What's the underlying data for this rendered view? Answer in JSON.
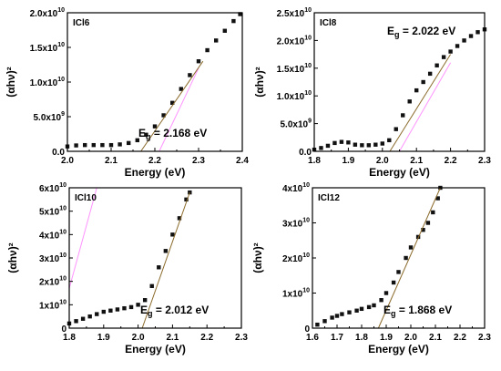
{
  "colors": {
    "data": "#111111",
    "fit": "#cc4444",
    "guide": "#ff66ff",
    "tangent": "#8a6a2a"
  },
  "chart_data": [
    {
      "type": "scatter",
      "label": "ICl6",
      "xlabel": "Energy (eV)",
      "ylabel": "(αhν)²",
      "xlim": [
        2.0,
        2.4
      ],
      "ylim": [
        0,
        20000000000.0
      ],
      "x_ticks": [
        2.0,
        2.1,
        2.2,
        2.3,
        2.4
      ],
      "x_tick_labels": [
        "2.0",
        "2.1",
        "2.2",
        "2.3",
        "2.4"
      ],
      "y_ticks": [
        0,
        5000000000.0,
        10000000000.0,
        15000000000.0,
        20000000000.0
      ],
      "y_tick_labels": [
        {
          "m": "0.0",
          "e": ""
        },
        {
          "m": "5.0x10",
          "e": "9"
        },
        {
          "m": "1.0x10",
          "e": "10"
        },
        {
          "m": "1.5x10",
          "e": "10"
        },
        {
          "m": "2.0x10",
          "e": "10"
        }
      ],
      "gap_text": {
        "base": "E",
        "sub": "g",
        "rest": " = 2.168 eV"
      },
      "gap_text_position": "lower-right",
      "band_gap": 2.168,
      "x": [
        2.0,
        2.02,
        2.04,
        2.06,
        2.08,
        2.1,
        2.12,
        2.14,
        2.16,
        2.18,
        2.2,
        2.22,
        2.24,
        2.26,
        2.28,
        2.3,
        2.32,
        2.34,
        2.36,
        2.38,
        2.395
      ],
      "y": [
        700000000.0,
        850000000.0,
        900000000.0,
        900000000.0,
        900000000.0,
        900000000.0,
        1000000000.0,
        1200000000.0,
        1600000000.0,
        2400000000.0,
        3600000000.0,
        5200000000.0,
        7000000000.0,
        9000000000.0,
        11000000000.0,
        13000000000.0,
        14600000000.0,
        16000000000.0,
        17400000000.0,
        18800000000.0,
        19800000000.0
      ],
      "fit_line": {
        "x": [
          2.168,
          2.31
        ],
        "y": [
          0,
          13000000000.0
        ]
      },
      "guide_line": {
        "x": [
          2.21,
          2.3
        ],
        "y": [
          0,
          12000000000.0
        ]
      }
    },
    {
      "type": "scatter",
      "label": "ICl8",
      "xlabel": "Energy (eV)",
      "ylabel": "(αhν)²",
      "xlim": [
        1.8,
        2.3
      ],
      "ylim": [
        0,
        25000000000.0
      ],
      "x_ticks": [
        1.8,
        1.9,
        2.0,
        2.1,
        2.2,
        2.3
      ],
      "x_tick_labels": [
        "1.8",
        "1.9",
        "2.0",
        "2.1",
        "2.2",
        "2.3"
      ],
      "y_ticks": [
        0,
        5000000000.0,
        10000000000.0,
        15000000000.0,
        20000000000.0,
        25000000000.0
      ],
      "y_tick_labels": [
        {
          "m": "0.0",
          "e": ""
        },
        {
          "m": "5.0x10",
          "e": "9"
        },
        {
          "m": "1.0x10",
          "e": "10"
        },
        {
          "m": "1.5x10",
          "e": "10"
        },
        {
          "m": "2.0x10",
          "e": "10"
        },
        {
          "m": "2.5x10",
          "e": "10"
        }
      ],
      "gap_text": {
        "base": "E",
        "sub": "g",
        "rest": " = 2.022 eV"
      },
      "gap_text_position": "top-right",
      "band_gap": 2.022,
      "x": [
        1.8,
        1.82,
        1.84,
        1.86,
        1.88,
        1.9,
        1.92,
        1.94,
        1.96,
        1.98,
        2.0,
        2.02,
        2.04,
        2.06,
        2.08,
        2.1,
        2.12,
        2.14,
        2.16,
        2.18,
        2.2,
        2.22,
        2.24,
        2.26,
        2.28,
        2.3
      ],
      "y": [
        300000000.0,
        600000000.0,
        1000000000.0,
        1500000000.0,
        1700000000.0,
        1600000000.0,
        1200000000.0,
        1100000000.0,
        1100000000.0,
        1200000000.0,
        1400000000.0,
        2000000000.0,
        4000000000.0,
        6500000000.0,
        9000000000.0,
        11000000000.0,
        12500000000.0,
        14000000000.0,
        15500000000.0,
        17000000000.0,
        18000000000.0,
        19000000000.0,
        20000000000.0,
        20800000000.0,
        21500000000.0,
        22000000000.0
      ],
      "fit_line": {
        "x": [
          2.022,
          2.2
        ],
        "y": [
          0,
          17500000000.0
        ]
      },
      "guide_line": {
        "x": [
          2.05,
          2.2
        ],
        "y": [
          0,
          16000000000.0
        ]
      }
    },
    {
      "type": "scatter",
      "label": "ICl10",
      "xlabel": "Energy (eV)",
      "ylabel": "(αhν)²",
      "xlim": [
        1.8,
        2.3
      ],
      "ylim": [
        0,
        60000000000.0
      ],
      "x_ticks": [
        1.8,
        1.9,
        2.0,
        2.1,
        2.2,
        2.3
      ],
      "x_tick_labels": [
        "1.8",
        "1.9",
        "2.0",
        "2.1",
        "2.2",
        "2.3"
      ],
      "y_ticks": [
        0,
        10000000000.0,
        20000000000.0,
        30000000000.0,
        40000000000.0,
        50000000000.0,
        60000000000.0
      ],
      "y_tick_labels": [
        {
          "m": "0",
          "e": ""
        },
        {
          "m": "1x10",
          "e": "10"
        },
        {
          "m": "2x10",
          "e": "10"
        },
        {
          "m": "3x10",
          "e": "10"
        },
        {
          "m": "4x10",
          "e": "10"
        },
        {
          "m": "5x10",
          "e": "10"
        },
        {
          "m": "6x10",
          "e": "10"
        }
      ],
      "gap_text": {
        "base": "E",
        "sub": "g",
        "rest": " = 2.012 eV"
      },
      "gap_text_position": "lower-right",
      "band_gap": 2.012,
      "x": [
        1.8,
        1.82,
        1.84,
        1.86,
        1.88,
        1.9,
        1.92,
        1.94,
        1.96,
        1.98,
        2.0,
        2.02,
        2.04,
        2.06,
        2.08,
        2.1,
        2.12,
        2.14,
        2.15
      ],
      "y": [
        2000000000.0,
        3000000000.0,
        4000000000.0,
        5000000000.0,
        6000000000.0,
        7000000000.0,
        7500000000.0,
        8000000000.0,
        8500000000.0,
        9000000000.0,
        10000000000.0,
        12000000000.0,
        18000000000.0,
        26000000000.0,
        33000000000.0,
        40000000000.0,
        47000000000.0,
        55000000000.0,
        58000000000.0
      ],
      "fit_line": {
        "x": [
          2.012,
          2.15
        ],
        "y": [
          0,
          58000000000.0
        ]
      },
      "guide_line": {
        "x": [
          1.8,
          1.88
        ],
        "y": [
          17000000000.0,
          60000000000.0
        ]
      }
    },
    {
      "type": "scatter",
      "label": "ICl12",
      "xlabel": "Energy (eV)",
      "ylabel": "(αhν)²",
      "xlim": [
        1.6,
        2.3
      ],
      "ylim": [
        0,
        40000000000.0
      ],
      "x_ticks": [
        1.6,
        1.7,
        1.8,
        1.9,
        2.0,
        2.1,
        2.2,
        2.3
      ],
      "x_tick_labels": [
        "1.6",
        "1.7",
        "1.8",
        "1.9",
        "2.0",
        "2.1",
        "2.2",
        "2.3"
      ],
      "y_ticks": [
        0,
        10000000000.0,
        20000000000.0,
        30000000000.0,
        40000000000.0
      ],
      "y_tick_labels": [
        {
          "m": "0",
          "e": ""
        },
        {
          "m": "1x10",
          "e": "10"
        },
        {
          "m": "2x10",
          "e": "10"
        },
        {
          "m": "3x10",
          "e": "10"
        },
        {
          "m": "4x10",
          "e": "10"
        }
      ],
      "gap_text": {
        "base": "E",
        "sub": "g",
        "rest": " = 1.868 eV"
      },
      "gap_text_position": "lower-right",
      "band_gap": 1.868,
      "x": [
        1.62,
        1.65,
        1.68,
        1.7,
        1.72,
        1.75,
        1.78,
        1.8,
        1.83,
        1.85,
        1.88,
        1.9,
        1.93,
        1.95,
        1.98,
        2.0,
        2.03,
        2.05,
        2.07,
        2.09,
        2.11,
        2.12
      ],
      "y": [
        1000000000.0,
        2000000000.0,
        3000000000.0,
        3500000000.0,
        4000000000.0,
        4500000000.0,
        5000000000.0,
        5500000000.0,
        6000000000.0,
        6500000000.0,
        8000000000.0,
        10000000000.0,
        13000000000.0,
        16000000000.0,
        20000000000.0,
        23000000000.0,
        26000000000.0,
        28000000000.0,
        30000000000.0,
        33000000000.0,
        37000000000.0,
        40000000000.0
      ],
      "fit_line": {
        "x": [
          1.868,
          2.12
        ],
        "y": [
          0,
          40000000000.0
        ]
      }
    }
  ]
}
